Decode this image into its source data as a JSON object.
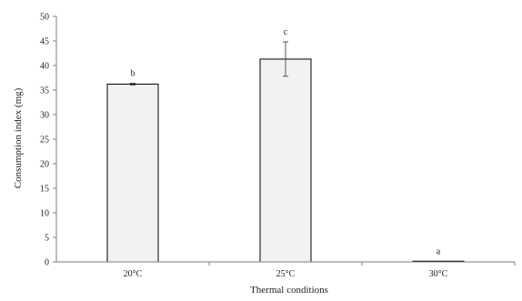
{
  "chart_data": {
    "type": "bar",
    "title": "",
    "xlabel": "Thermal conditions",
    "ylabel": "Consumption index (mg)",
    "categories": [
      "20°C",
      "25°C",
      "30°C"
    ],
    "values": [
      36.2,
      41.3,
      0.05
    ],
    "error": [
      0.2,
      3.5,
      0
    ],
    "significance_letters": [
      "b",
      "c",
      "a"
    ],
    "ylim": [
      0,
      50
    ],
    "yticks": [
      "0",
      "5",
      "10",
      "15",
      "20",
      "25",
      "30",
      "35",
      "40",
      "45",
      "50"
    ],
    "grid": false,
    "legend": "none",
    "colors": {
      "bar_fill": "#f2f2f2",
      "bar_stroke": "#000000",
      "axis": "#7f7f7f"
    }
  }
}
